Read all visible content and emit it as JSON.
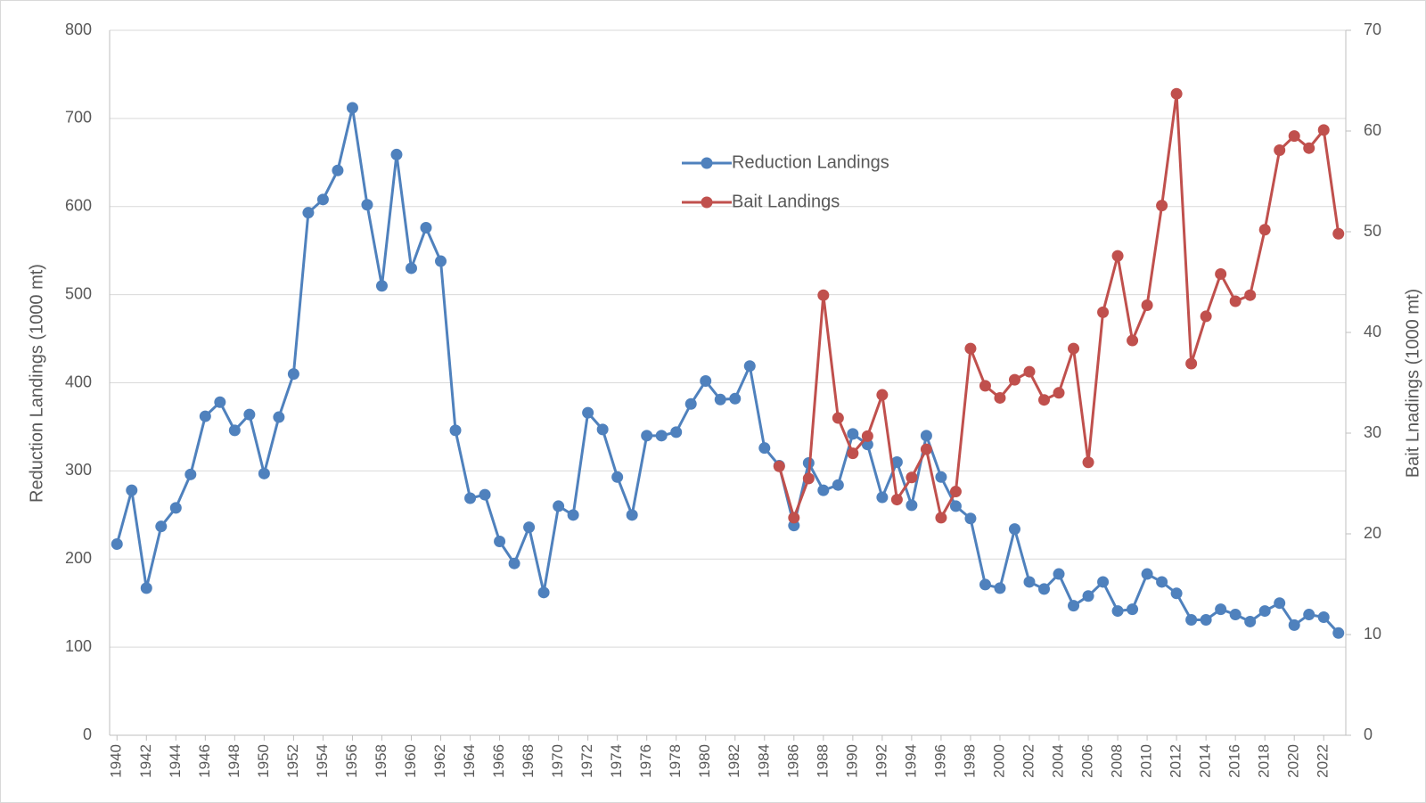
{
  "chart_data": {
    "type": "line",
    "x": [
      1940,
      1941,
      1942,
      1943,
      1944,
      1945,
      1946,
      1947,
      1948,
      1949,
      1950,
      1951,
      1952,
      1953,
      1954,
      1955,
      1956,
      1957,
      1958,
      1959,
      1960,
      1961,
      1962,
      1963,
      1964,
      1965,
      1966,
      1967,
      1968,
      1969,
      1970,
      1971,
      1972,
      1973,
      1974,
      1975,
      1976,
      1977,
      1978,
      1979,
      1980,
      1981,
      1982,
      1983,
      1984,
      1985,
      1986,
      1987,
      1988,
      1989,
      1990,
      1991,
      1992,
      1993,
      1994,
      1995,
      1996,
      1997,
      1998,
      1999,
      2000,
      2001,
      2002,
      2003,
      2004,
      2005,
      2006,
      2007,
      2008,
      2009,
      2010,
      2011,
      2012,
      2013,
      2014,
      2015,
      2016,
      2017,
      2018,
      2019,
      2020,
      2021,
      2022,
      2023
    ],
    "series": [
      {
        "name": "Reduction Landings",
        "color": "#4f81bd",
        "axis": "y",
        "values": [
          217,
          278,
          167,
          237,
          258,
          296,
          362,
          378,
          346,
          364,
          297,
          361,
          410,
          593,
          608,
          641,
          712,
          602,
          510,
          659,
          530,
          576,
          538,
          346,
          269,
          273,
          220,
          195,
          236,
          162,
          260,
          250,
          366,
          347,
          293,
          250,
          340,
          340,
          344,
          376,
          402,
          381,
          382,
          419,
          326,
          306,
          238,
          309,
          278,
          284,
          342,
          330,
          270,
          310,
          261,
          340,
          293,
          260,
          246,
          171,
          167,
          234,
          174,
          166,
          183,
          147,
          158,
          174,
          141,
          143,
          183,
          174,
          161,
          131,
          131,
          143,
          137,
          129,
          141,
          150,
          125,
          137,
          134,
          116
        ]
      },
      {
        "name": "Bait Landings",
        "color": "#c0504d",
        "axis": "y2",
        "values": [
          null,
          null,
          null,
          null,
          null,
          null,
          null,
          null,
          null,
          null,
          null,
          null,
          null,
          null,
          null,
          null,
          null,
          null,
          null,
          null,
          null,
          null,
          null,
          null,
          null,
          null,
          null,
          null,
          null,
          null,
          null,
          null,
          null,
          null,
          null,
          null,
          null,
          null,
          null,
          null,
          null,
          null,
          null,
          null,
          null,
          26.7,
          21.6,
          25.5,
          43.7,
          31.5,
          28.0,
          29.7,
          33.8,
          23.4,
          25.6,
          28.4,
          21.6,
          24.2,
          38.4,
          34.7,
          33.5,
          35.3,
          36.1,
          33.3,
          34.0,
          38.4,
          27.1,
          42.0,
          47.6,
          39.2,
          42.7,
          52.6,
          63.7,
          36.9,
          41.6,
          45.8,
          43.1,
          43.7,
          50.2,
          58.1,
          59.5,
          58.3,
          60.1,
          49.8
        ]
      }
    ],
    "xlim": [
      1939.5,
      2023.5
    ],
    "xticks": [
      1940,
      1942,
      1944,
      1946,
      1948,
      1950,
      1952,
      1954,
      1956,
      1958,
      1960,
      1962,
      1964,
      1966,
      1968,
      1970,
      1972,
      1974,
      1976,
      1978,
      1980,
      1982,
      1984,
      1986,
      1988,
      1990,
      1992,
      1994,
      1996,
      1998,
      2000,
      2002,
      2004,
      2006,
      2008,
      2010,
      2012,
      2014,
      2016,
      2018,
      2020,
      2022
    ],
    "ylim": [
      0,
      800
    ],
    "yticks": [
      0,
      100,
      200,
      300,
      400,
      500,
      600,
      700,
      800
    ],
    "y2lim": [
      0,
      70
    ],
    "y2ticks": [
      0,
      10,
      20,
      30,
      40,
      50,
      60,
      70
    ],
    "ylabel": "Reduction Landings (1000 mt)",
    "y2label": "Bait Lnadings (1000 mt)",
    "grid": true,
    "legend": "upper-center"
  }
}
